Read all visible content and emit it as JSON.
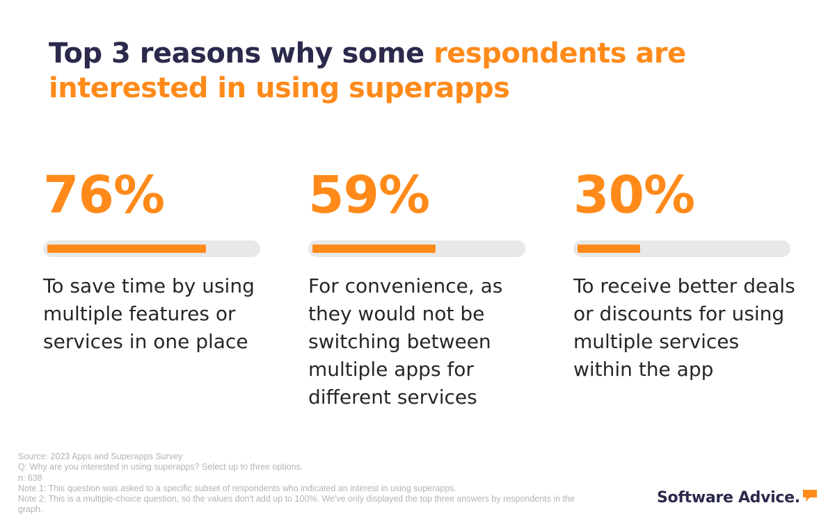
{
  "title": {
    "part1": "Top 3 reasons why some ",
    "part2": "respondents are interested in using superapps"
  },
  "chart_data": {
    "type": "bar",
    "orientation": "horizontal",
    "unit": "%",
    "xlim": [
      0,
      100
    ],
    "categories": [
      "To save time by using multiple features or services in one place",
      "For convenience, as they would not be switching between multiple apps for different services",
      "To receive better deals or discounts for using multiple services within the app"
    ],
    "values": [
      76,
      59,
      30
    ],
    "value_labels": [
      "76%",
      "59%",
      "30%"
    ]
  },
  "notes": {
    "source": "Source: 2023 Apps and Superapps Survey",
    "question": "Q: Why are you interested in using superapps? Select up to three options.",
    "n": "n: 638",
    "note1": "Note 1: This question was asked to a specific subset of respondents who indicated an interest in using superapps.",
    "note2": "Note 2: This is a multiple-choice question, so the values don't add up to 100%. We've only displayed the top three answers by respondents in the graph."
  },
  "brand": {
    "name": "Software Advice.",
    "icon": "speech-bubble-icon"
  },
  "colors": {
    "accent": "#ff8a1a",
    "title": "#2b2a4c",
    "track": "#e8e8e8",
    "text": "#262626",
    "notes": "#b3b3b3"
  }
}
